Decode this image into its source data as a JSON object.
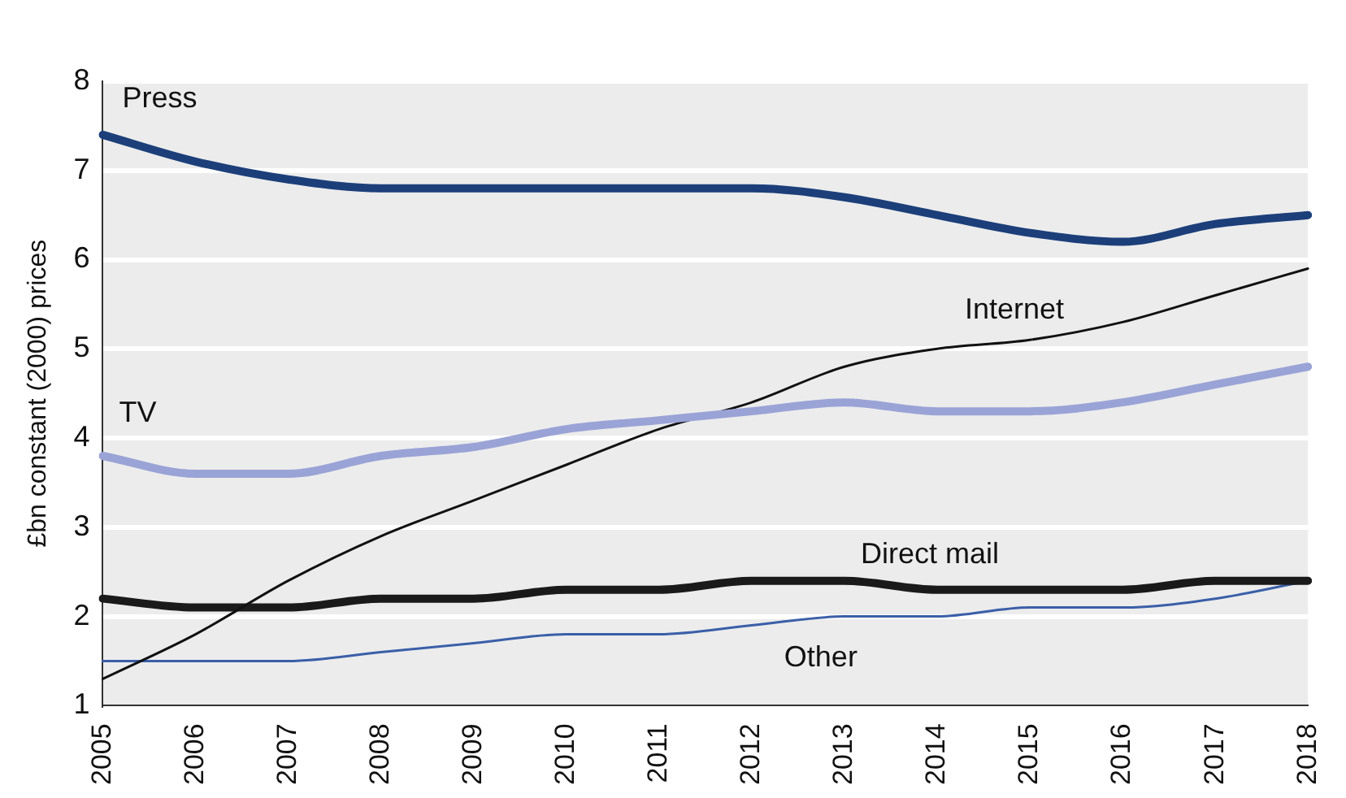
{
  "chart_data": {
    "type": "line",
    "ylabel": "£bn constant (2000) prices",
    "categories": [
      "2005",
      "2006",
      "2007",
      "2008",
      "2009",
      "2010",
      "2011",
      "2012",
      "2013",
      "2014",
      "2015",
      "2016",
      "2017",
      "2018"
    ],
    "series": [
      {
        "name": "Press",
        "color": "#1c3f7a",
        "values": [
          7.4,
          7.1,
          6.9,
          6.8,
          6.8,
          6.8,
          6.8,
          6.8,
          6.7,
          6.5,
          6.3,
          6.2,
          6.4,
          6.5
        ]
      },
      {
        "name": "TV",
        "color": "#9aa3d6",
        "values": [
          3.8,
          3.6,
          3.6,
          3.8,
          3.9,
          4.1,
          4.2,
          4.3,
          4.4,
          4.3,
          4.3,
          4.4,
          4.6,
          4.8
        ]
      },
      {
        "name": "Internet",
        "color": "#111111",
        "values": [
          1.3,
          1.8,
          2.4,
          2.9,
          3.3,
          3.7,
          4.1,
          4.4,
          4.8,
          5.0,
          5.1,
          5.3,
          5.6,
          5.9
        ]
      },
      {
        "name": "Direct mail",
        "color": "#1a1a1a",
        "values": [
          2.2,
          2.1,
          2.1,
          2.2,
          2.2,
          2.3,
          2.3,
          2.4,
          2.4,
          2.3,
          2.3,
          2.3,
          2.4,
          2.4
        ]
      },
      {
        "name": "Other",
        "color": "#3a5fa8",
        "values": [
          1.5,
          1.5,
          1.5,
          1.6,
          1.7,
          1.8,
          1.8,
          1.9,
          2.0,
          2.0,
          2.1,
          2.1,
          2.2,
          2.4
        ]
      }
    ],
    "ylim": [
      1,
      8
    ],
    "yticks": [
      1,
      2,
      3,
      4,
      5,
      6,
      7,
      8
    ],
    "grid": "y",
    "legend": false,
    "marker": "none",
    "line_style": "solid"
  }
}
